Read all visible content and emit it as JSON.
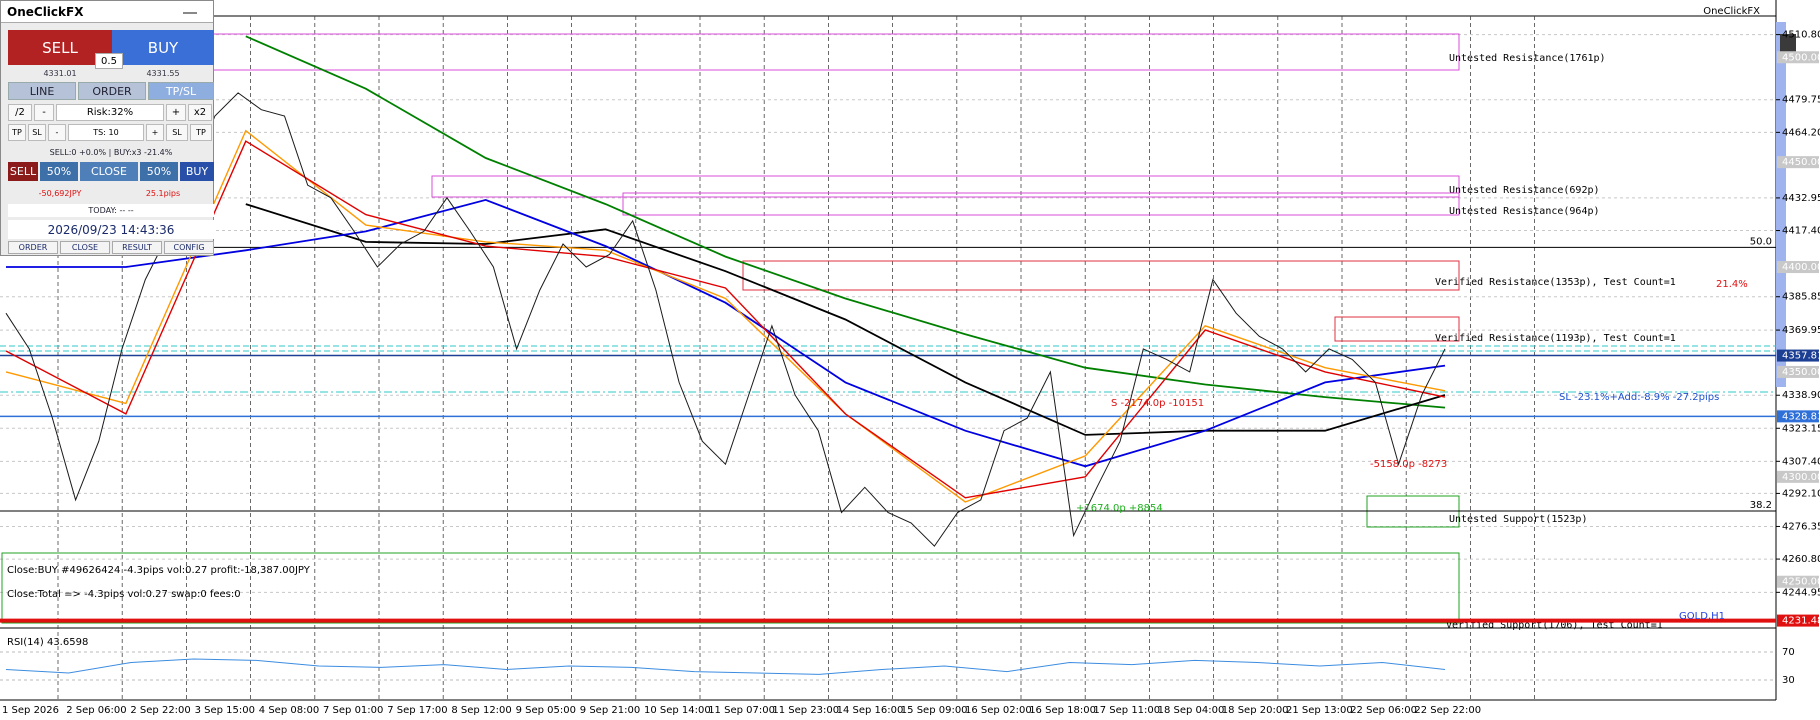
{
  "panel": {
    "title": "OneClickFX",
    "sell": "SELL",
    "buy": "BUY",
    "lot": "0.5",
    "bid": "4331.01",
    "ask": "4331.55",
    "tabs": [
      "LINE",
      "ORDER",
      "TP/SL"
    ],
    "row1": [
      "/2",
      "-",
      "Risk:32%",
      "+",
      "x2"
    ],
    "row2": [
      "TP",
      "SL",
      "-",
      "TS: 10",
      "+",
      "SL",
      "TP"
    ],
    "status": "SELL:0 +0.0% | BUY:x3 -21.4%",
    "row3": [
      "SELL",
      "50%",
      "CLOSE",
      "50%",
      "BUY"
    ],
    "pnl": "-50,692JPY",
    "pips": "25.1pips",
    "today": "TODAY: -- --",
    "datetime": "2026/09/23 14:43:36",
    "footer": [
      "ORDER",
      "CLOSE",
      "RESULT",
      "CONFIG"
    ]
  },
  "chart": {
    "corner_label": "OneClickFX",
    "symbol": "GOLD,H1",
    "ylim": [
      4228.9,
      4523.0
    ],
    "yticks": [
      {
        "value": 4510.8,
        "label": "4510.80"
      },
      {
        "value": 4479.75,
        "label": "4479.75"
      },
      {
        "value": 4464.2,
        "label": "4464.20"
      },
      {
        "value": 4432.95,
        "label": "4432.95"
      },
      {
        "value": 4417.4,
        "label": "4417.40"
      },
      {
        "value": 4385.85,
        "label": "4385.85"
      },
      {
        "value": 4369.95,
        "label": "4369.95"
      },
      {
        "value": 4338.9,
        "label": "4338.90"
      },
      {
        "value": 4323.15,
        "label": "4323.15"
      },
      {
        "value": 4307.4,
        "label": "4307.40"
      },
      {
        "value": 4292.1,
        "label": "4292.10"
      },
      {
        "value": 4276.35,
        "label": "4276.35"
      },
      {
        "value": 4260.8,
        "label": "4260.80"
      },
      {
        "value": 4244.95,
        "label": "4244.95"
      }
    ],
    "price_tags": [
      {
        "value": 4500,
        "label": "4500.00",
        "color": "#c8c8c8"
      },
      {
        "value": 4450,
        "label": "4450.00",
        "color": "#c8c8c8"
      },
      {
        "value": 4400,
        "label": "4400.00",
        "color": "#c8c8c8"
      },
      {
        "value": 4357.81,
        "label": "4357.81",
        "color": "#1c3f94"
      },
      {
        "value": 4350,
        "label": "4350.00",
        "color": "#c8c8c8"
      },
      {
        "value": 4328.83,
        "label": "4328.83",
        "color": "#2f6fd8"
      },
      {
        "value": 4300,
        "label": "4300.00",
        "color": "#c8c8c8"
      },
      {
        "value": 4250,
        "label": "4250.00",
        "color": "#c8c8c8"
      },
      {
        "value": 4231.48,
        "label": "4231.48",
        "color": "#e01010"
      }
    ],
    "fib_levels": [
      {
        "label": "50.0",
        "price": 4409.4
      },
      {
        "label": "38.2",
        "price": 4283.7
      }
    ],
    "time_labels": [
      "1 Sep 2026",
      "2 Sep 06:00",
      "2 Sep 22:00",
      "3 Sep 15:00",
      "4 Sep 08:00",
      "7 Sep 01:00",
      "7 Sep 17:00",
      "8 Sep 12:00",
      "9 Sep 05:00",
      "9 Sep 21:00",
      "10 Sep 14:00",
      "11 Sep 07:00",
      "11 Sep 23:00",
      "14 Sep 16:00",
      "15 Sep 09:00",
      "16 Sep 02:00",
      "16 Sep 18:00",
      "17 Sep 11:00",
      "18 Sep 04:00",
      "18 Sep 20:00",
      "21 Sep 13:00",
      "22 Sep 06:00",
      "22 Sep 22:00"
    ],
    "price": {
      "color": "#1a1a1a",
      "values": [
        4378,
        4361,
        4328,
        4289,
        4317,
        4361,
        4394,
        4416,
        4444,
        4472,
        4483,
        4475,
        4472,
        4439,
        4433,
        4417,
        4400,
        4411,
        4417,
        4433,
        4417,
        4400,
        4361,
        4389,
        4411,
        4400,
        4406,
        4422,
        4389,
        4345,
        4317,
        4306,
        4339,
        4372,
        4339,
        4322,
        4283,
        4295,
        4283,
        4278,
        4267,
        4283,
        4289,
        4322,
        4328,
        4350,
        4272,
        4295,
        4317,
        4361,
        4356,
        4350,
        4394,
        4378,
        4367,
        4361,
        4350,
        4361,
        4356,
        4345,
        4306,
        4339,
        4361
      ]
    },
    "moving_averages": [
      {
        "color": "#008000",
        "values": [
          null,
          null,
          4510,
          4485,
          4452,
          4430,
          4405,
          4385,
          4368,
          4352,
          4344,
          4338,
          4333
        ]
      },
      {
        "color": "#000000",
        "values": [
          null,
          null,
          4430,
          4412,
          4411,
          4418,
          4398,
          4375,
          4345,
          4320,
          4322,
          4322,
          4339
        ]
      },
      {
        "color": "#0000e0",
        "values": [
          4400,
          4400,
          4408,
          4417,
          4432,
          4410,
          4383,
          4345,
          4322,
          4305,
          4322,
          4345,
          4353
        ]
      },
      {
        "color": "#ff9900",
        "values": [
          4350,
          4335,
          4465,
          4420,
          4412,
          4408,
          4385,
          4330,
          4288,
          4310,
          4372,
          4352,
          4341
        ]
      },
      {
        "color": "#e00000",
        "values": [
          4360,
          4330,
          4460,
          4425,
          4410,
          4405,
          4390,
          4330,
          4290,
          4300,
          4370,
          4350,
          4338
        ]
      }
    ],
    "zones": [
      "Untested Resistance(1761p)",
      "Untested Resistance(692p)",
      "Untested Resistance(964p)",
      "Verified Resistance(1353p), Test Count=1",
      "Verified Resistance(1193p), Test Count=1",
      "Untested Support(1523p)",
      "Verified Support(1706), Test Count=1"
    ],
    "risk_label": "21.4%",
    "sl_label": "SL -23.1%+Add:-8.9% -27.2pips",
    "trades": [
      "S -2174.0p -10151",
      "+1674.0p +8854",
      "-5158.0p -8273"
    ],
    "messages": [
      "Close:BUY #49626424 -4.3pips vol:0.27 profit:-18,387.00JPY",
      "Close:Total => -4.3pips vol:0.27 swap:0 fees:0"
    ]
  },
  "rsi": {
    "label": "RSI(14) 43.6598",
    "ylim": [
      0,
      100
    ],
    "yticks": [
      70,
      30
    ],
    "color": "#3c8ce0",
    "values": [
      45,
      40,
      55,
      60,
      58,
      50,
      48,
      52,
      45,
      50,
      48,
      42,
      40,
      38,
      45,
      50,
      42,
      55,
      52,
      58,
      55,
      50,
      55,
      45
    ]
  }
}
